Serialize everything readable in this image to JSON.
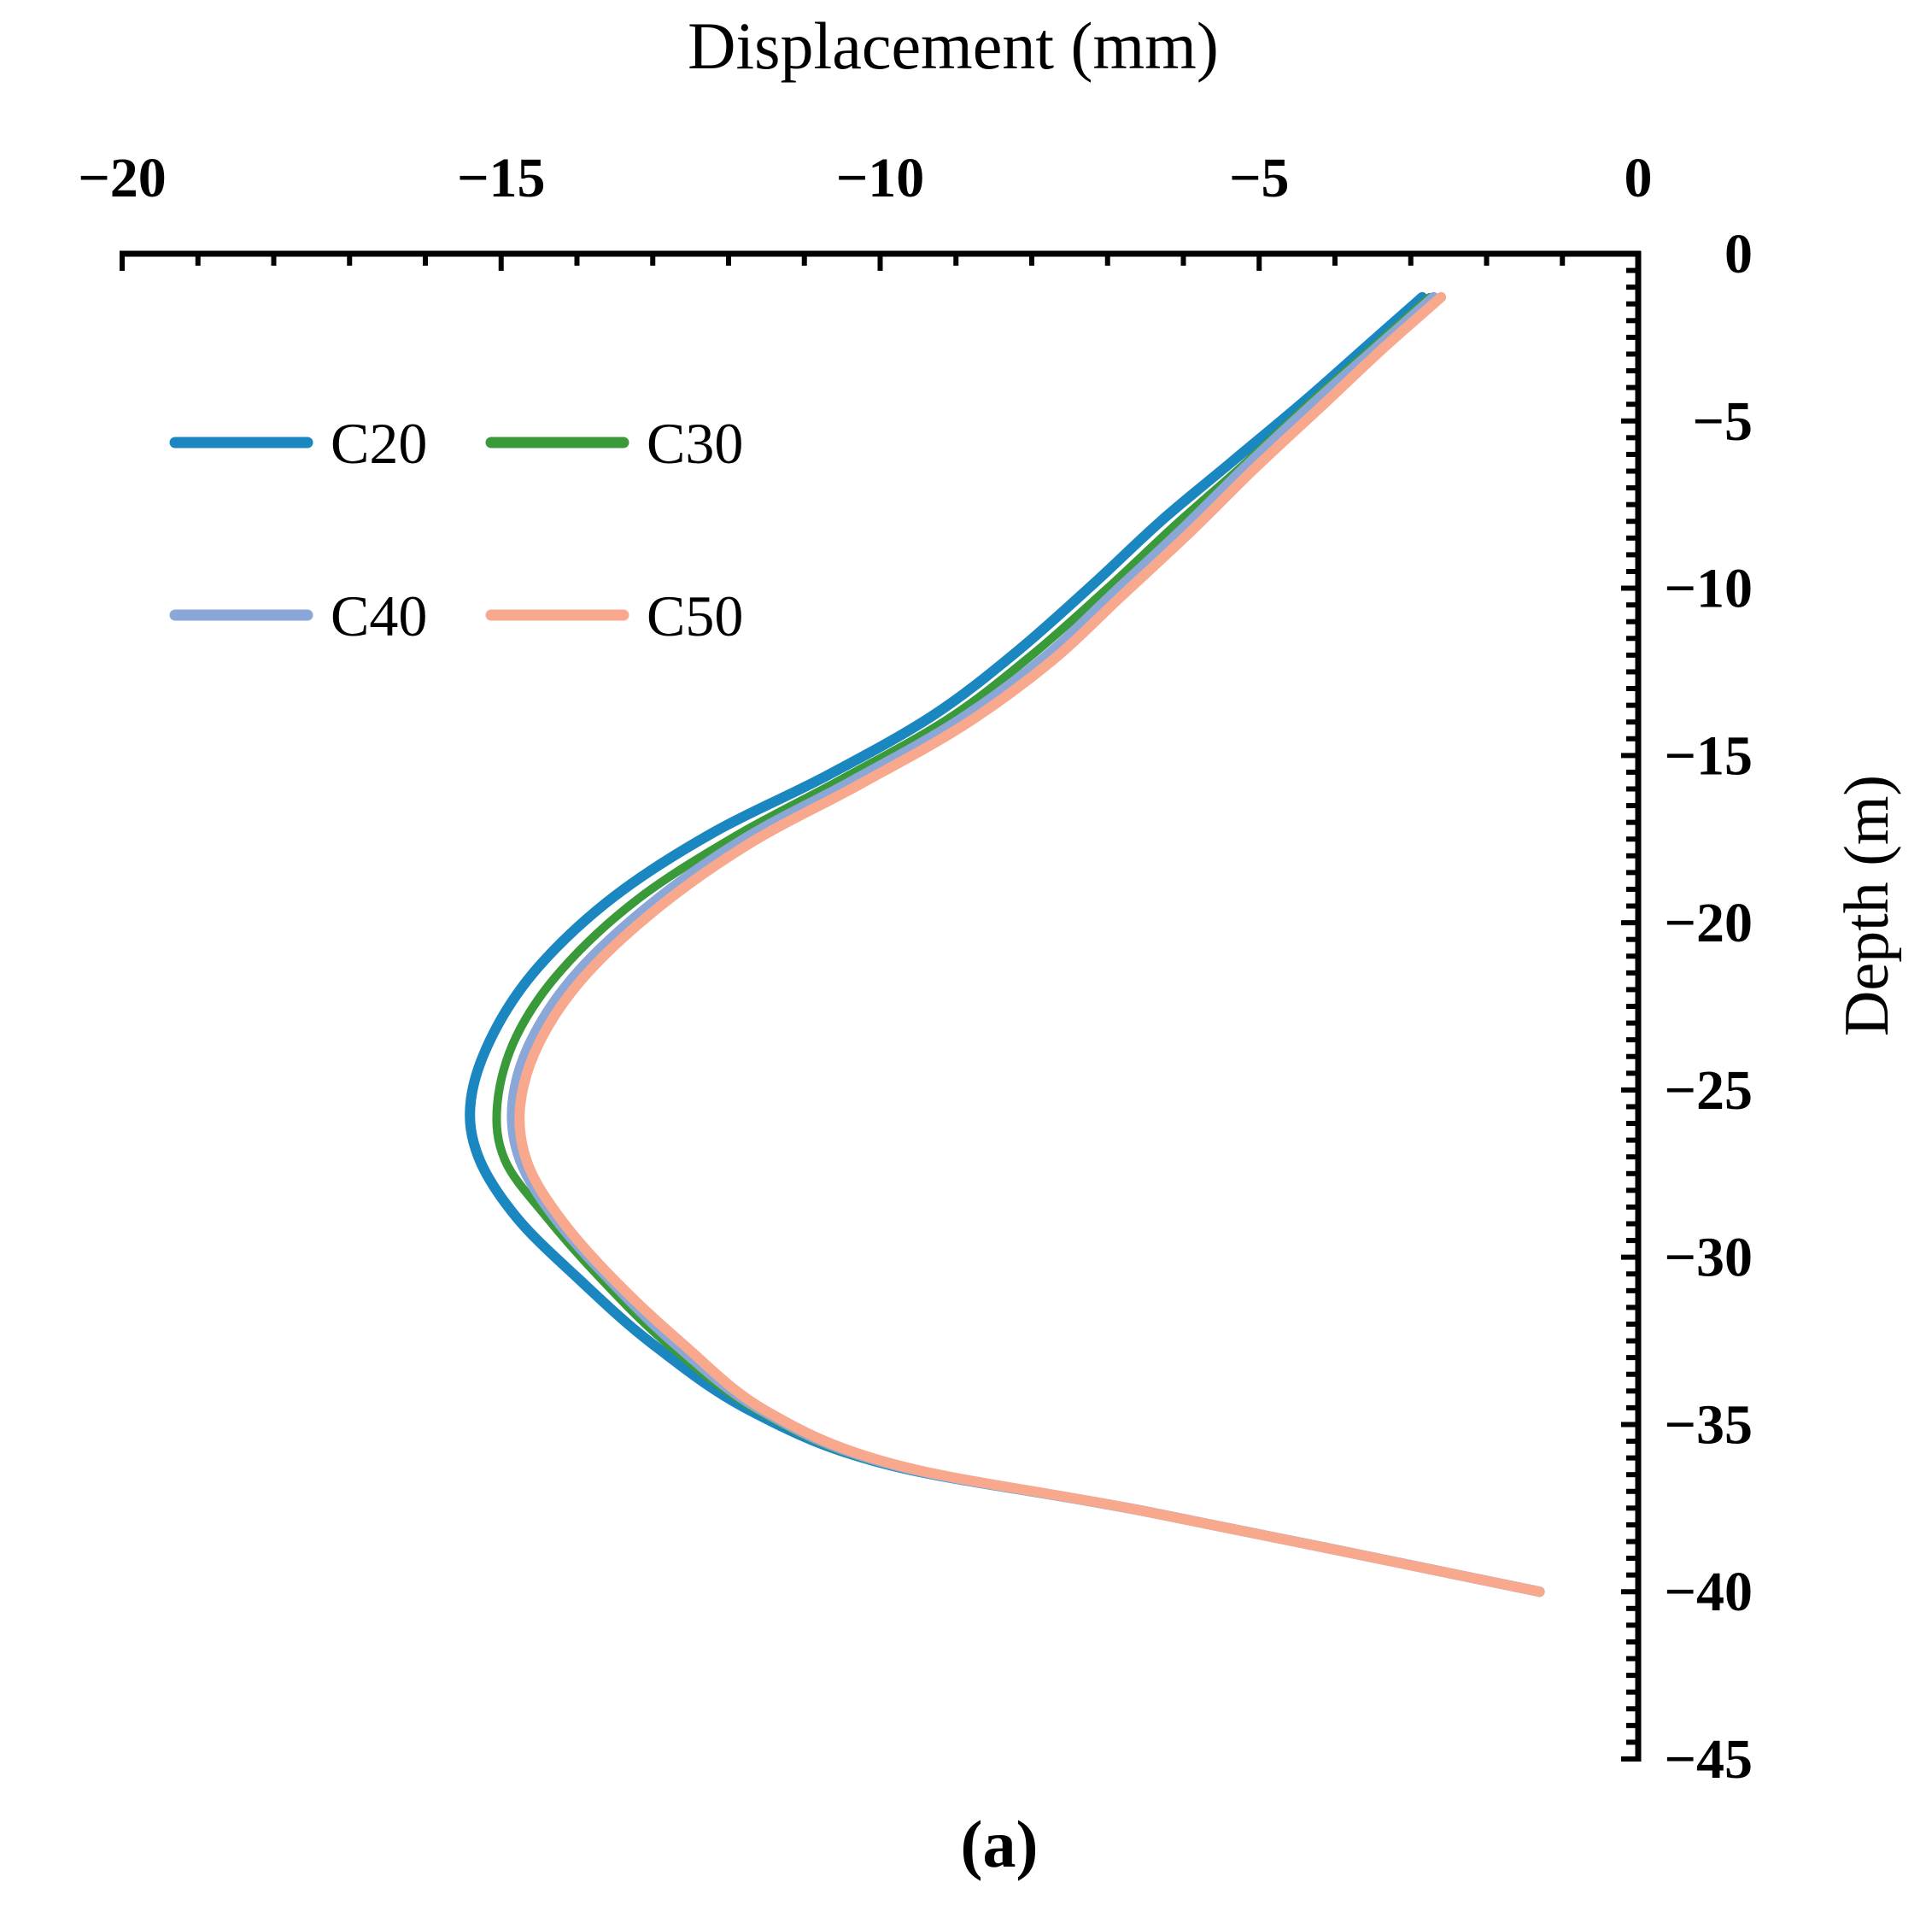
{
  "chart_data": {
    "type": "line",
    "title": "",
    "xlabel": "Displacement (mm)",
    "ylabel": "Depth (m)",
    "panel_label": "(a)",
    "xlim": [
      -20,
      0
    ],
    "ylim": [
      -45,
      0
    ],
    "x_major_ticks": [
      -20,
      -15,
      -10,
      -5,
      0
    ],
    "x_tick_labels": [
      "−20",
      "−15",
      "−10",
      "−5",
      "0"
    ],
    "x_minor_step": 1,
    "y_major_ticks": [
      0,
      -5,
      -10,
      -15,
      -20,
      -25,
      -30,
      -35,
      -40,
      -45
    ],
    "y_tick_labels": [
      "0",
      "−5",
      "−10",
      "−15",
      "−20",
      "−25",
      "−30",
      "−35",
      "−40",
      "−45"
    ],
    "y_minor_step": 0.5,
    "x_axis_position": "top",
    "y_axis_position": "right",
    "grid": false,
    "legend_position": "top-left",
    "series": [
      {
        "name": "C20",
        "color": "#1b87c0",
        "points": [
          [
            -2.85,
            -1.3
          ],
          [
            -3.6,
            -2.8
          ],
          [
            -4.4,
            -4.4
          ],
          [
            -5.35,
            -6.2
          ],
          [
            -6.3,
            -8.0
          ],
          [
            -7.2,
            -9.9
          ],
          [
            -8.2,
            -11.9
          ],
          [
            -9.3,
            -13.8
          ],
          [
            -10.7,
            -15.6
          ],
          [
            -12.2,
            -17.3
          ],
          [
            -13.5,
            -19.2
          ],
          [
            -14.5,
            -21.3
          ],
          [
            -15.1,
            -23.3
          ],
          [
            -15.4,
            -25.3
          ],
          [
            -15.3,
            -27.0
          ],
          [
            -14.8,
            -28.8
          ],
          [
            -14.0,
            -30.6
          ],
          [
            -13.0,
            -32.6
          ],
          [
            -11.7,
            -34.6
          ],
          [
            -9.9,
            -36.2
          ],
          [
            -6.5,
            -37.6
          ],
          [
            -1.3,
            -40.0
          ]
        ]
      },
      {
        "name": "C30",
        "color": "#3a9a3a",
        "points": [
          [
            -2.75,
            -1.3
          ],
          [
            -3.5,
            -2.8
          ],
          [
            -4.3,
            -4.4
          ],
          [
            -5.2,
            -6.3
          ],
          [
            -6.1,
            -8.1
          ],
          [
            -7.0,
            -10.0
          ],
          [
            -8.0,
            -12.0
          ],
          [
            -9.1,
            -13.9
          ],
          [
            -10.5,
            -15.7
          ],
          [
            -11.9,
            -17.4
          ],
          [
            -13.2,
            -19.3
          ],
          [
            -14.2,
            -21.4
          ],
          [
            -14.8,
            -23.4
          ],
          [
            -15.05,
            -25.4
          ],
          [
            -14.95,
            -27.1
          ],
          [
            -14.4,
            -28.8
          ],
          [
            -13.7,
            -30.6
          ],
          [
            -12.8,
            -32.6
          ],
          [
            -11.6,
            -34.6
          ],
          [
            -9.9,
            -36.2
          ],
          [
            -6.5,
            -37.6
          ],
          [
            -1.3,
            -40.0
          ]
        ]
      },
      {
        "name": "C40",
        "color": "#8aa7d8",
        "points": [
          [
            -2.7,
            -1.3
          ],
          [
            -3.45,
            -2.8
          ],
          [
            -4.25,
            -4.4
          ],
          [
            -5.15,
            -6.3
          ],
          [
            -6.0,
            -8.2
          ],
          [
            -6.9,
            -10.1
          ],
          [
            -7.85,
            -12.1
          ],
          [
            -9.0,
            -14.0
          ],
          [
            -10.4,
            -15.8
          ],
          [
            -11.8,
            -17.5
          ],
          [
            -13.0,
            -19.4
          ],
          [
            -14.0,
            -21.5
          ],
          [
            -14.6,
            -23.5
          ],
          [
            -14.85,
            -25.4
          ],
          [
            -14.75,
            -27.1
          ],
          [
            -14.3,
            -28.8
          ],
          [
            -13.6,
            -30.6
          ],
          [
            -12.7,
            -32.6
          ],
          [
            -11.55,
            -34.6
          ],
          [
            -9.85,
            -36.2
          ],
          [
            -6.5,
            -37.6
          ],
          [
            -1.3,
            -40.0
          ]
        ]
      },
      {
        "name": "C50",
        "color": "#f8a98d",
        "points": [
          [
            -2.6,
            -1.3
          ],
          [
            -3.35,
            -2.8
          ],
          [
            -4.15,
            -4.5
          ],
          [
            -5.05,
            -6.4
          ],
          [
            -5.9,
            -8.3
          ],
          [
            -6.8,
            -10.2
          ],
          [
            -7.75,
            -12.2
          ],
          [
            -8.9,
            -14.1
          ],
          [
            -10.3,
            -15.9
          ],
          [
            -11.7,
            -17.6
          ],
          [
            -12.9,
            -19.5
          ],
          [
            -13.9,
            -21.6
          ],
          [
            -14.5,
            -23.6
          ],
          [
            -14.75,
            -25.5
          ],
          [
            -14.65,
            -27.2
          ],
          [
            -14.2,
            -28.9
          ],
          [
            -13.5,
            -30.7
          ],
          [
            -12.6,
            -32.6
          ],
          [
            -11.5,
            -34.6
          ],
          [
            -9.8,
            -36.2
          ],
          [
            -6.5,
            -37.6
          ],
          [
            -1.3,
            -40.0
          ]
        ]
      }
    ]
  }
}
